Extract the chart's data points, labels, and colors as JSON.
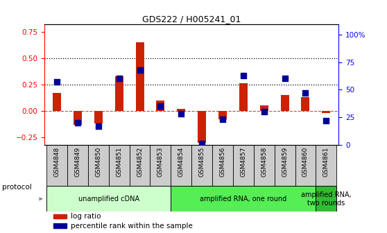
{
  "title": "GDS222 / H005241_01",
  "samples": [
    "GSM4848",
    "GSM4849",
    "GSM4850",
    "GSM4851",
    "GSM4852",
    "GSM4853",
    "GSM4854",
    "GSM4855",
    "GSM4856",
    "GSM4857",
    "GSM4858",
    "GSM4859",
    "GSM4860",
    "GSM4861"
  ],
  "log_ratio": [
    0.17,
    -0.13,
    -0.12,
    0.33,
    0.65,
    0.1,
    0.02,
    -0.3,
    -0.08,
    0.26,
    0.05,
    0.15,
    0.13,
    -0.02
  ],
  "percentile": [
    0.57,
    0.2,
    0.17,
    0.6,
    0.68,
    0.35,
    0.28,
    0.01,
    0.23,
    0.63,
    0.3,
    0.6,
    0.47,
    0.22
  ],
  "bar_color": "#cc2200",
  "dot_color": "#000099",
  "ylim_left": [
    -0.32,
    0.82
  ],
  "ylim_right": [
    0,
    1.092
  ],
  "yticks_left": [
    -0.25,
    0,
    0.25,
    0.5,
    0.75
  ],
  "ytick_labels_left": [
    "-0.25",
    "0",
    "0.25",
    "0.5",
    "0.75"
  ],
  "yticks_right": [
    0,
    0.25,
    0.5,
    0.75,
    1.0
  ],
  "ytick_labels_right": [
    "0",
    "25",
    "50",
    "75",
    "100%"
  ],
  "dotted_lines": [
    0.5,
    0.25
  ],
  "protocol_groups": [
    {
      "label": "unamplified cDNA",
      "start": 0,
      "end": 5,
      "color": "#ccffcc"
    },
    {
      "label": "amplified RNA, one round",
      "start": 6,
      "end": 12,
      "color": "#55ee55"
    },
    {
      "label": "amplified RNA,\ntwo rounds",
      "start": 13,
      "end": 13,
      "color": "#33bb33"
    }
  ],
  "legend_log_ratio_color": "#cc2200",
  "legend_percentile_color": "#000099",
  "background_color": "#ffffff",
  "zero_line_color": "#cc4444",
  "sample_box_color": "#cccccc"
}
